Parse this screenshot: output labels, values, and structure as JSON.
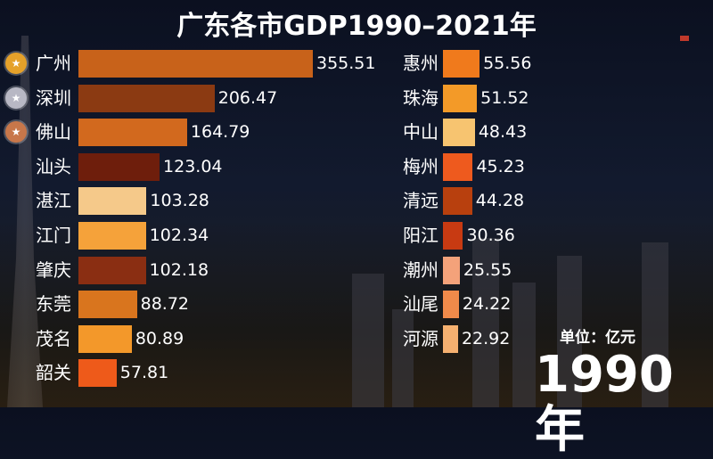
{
  "title": "广东各市GDP1990–2021年",
  "unit_label": "单位：亿元",
  "year_label": "1990年",
  "colors": {
    "medal_gold": "#e5a12a",
    "medal_silver": "#b8b8c4",
    "medal_bronze": "#c8774a"
  },
  "chart_data": {
    "type": "bar",
    "orientation": "horizontal",
    "title": "广东各市GDP1990–2021年",
    "unit": "亿元",
    "year": "1990年",
    "xlim": [
      0,
      355.51
    ],
    "columns": [
      {
        "items": [
          {
            "name": "广州",
            "value": 355.51,
            "color": "#c8621a",
            "medal": "gold"
          },
          {
            "name": "深圳",
            "value": 206.47,
            "color": "#8b3a12",
            "medal": "silver"
          },
          {
            "name": "佛山",
            "value": 164.79,
            "color": "#d2691e",
            "medal": "bronze"
          },
          {
            "name": "汕头",
            "value": 123.04,
            "color": "#6e1e0c"
          },
          {
            "name": "湛江",
            "value": 103.28,
            "color": "#f5c98a"
          },
          {
            "name": "江门",
            "value": 102.34,
            "color": "#f5a23a"
          },
          {
            "name": "肇庆",
            "value": 102.18,
            "color": "#8a2e12"
          },
          {
            "name": "东莞",
            "value": 88.72,
            "color": "#d9751e"
          },
          {
            "name": "茂名",
            "value": 80.89,
            "color": "#f3982a"
          },
          {
            "name": "韶关",
            "value": 57.81,
            "color": "#ee5a1a"
          }
        ]
      },
      {
        "items": [
          {
            "name": "惠州",
            "value": 55.56,
            "color": "#f07a1c"
          },
          {
            "name": "珠海",
            "value": 51.52,
            "color": "#f39a28"
          },
          {
            "name": "中山",
            "value": 48.43,
            "color": "#f7c470"
          },
          {
            "name": "梅州",
            "value": 45.23,
            "color": "#ee5a1e"
          },
          {
            "name": "清远",
            "value": 44.28,
            "color": "#b8400e"
          },
          {
            "name": "阳江",
            "value": 30.36,
            "color": "#c83a12"
          },
          {
            "name": "潮州",
            "value": 25.55,
            "color": "#f4a27a"
          },
          {
            "name": "汕尾",
            "value": 24.22,
            "color": "#f08a4a"
          },
          {
            "name": "河源",
            "value": 22.92,
            "color": "#f5b070"
          }
        ]
      }
    ]
  }
}
